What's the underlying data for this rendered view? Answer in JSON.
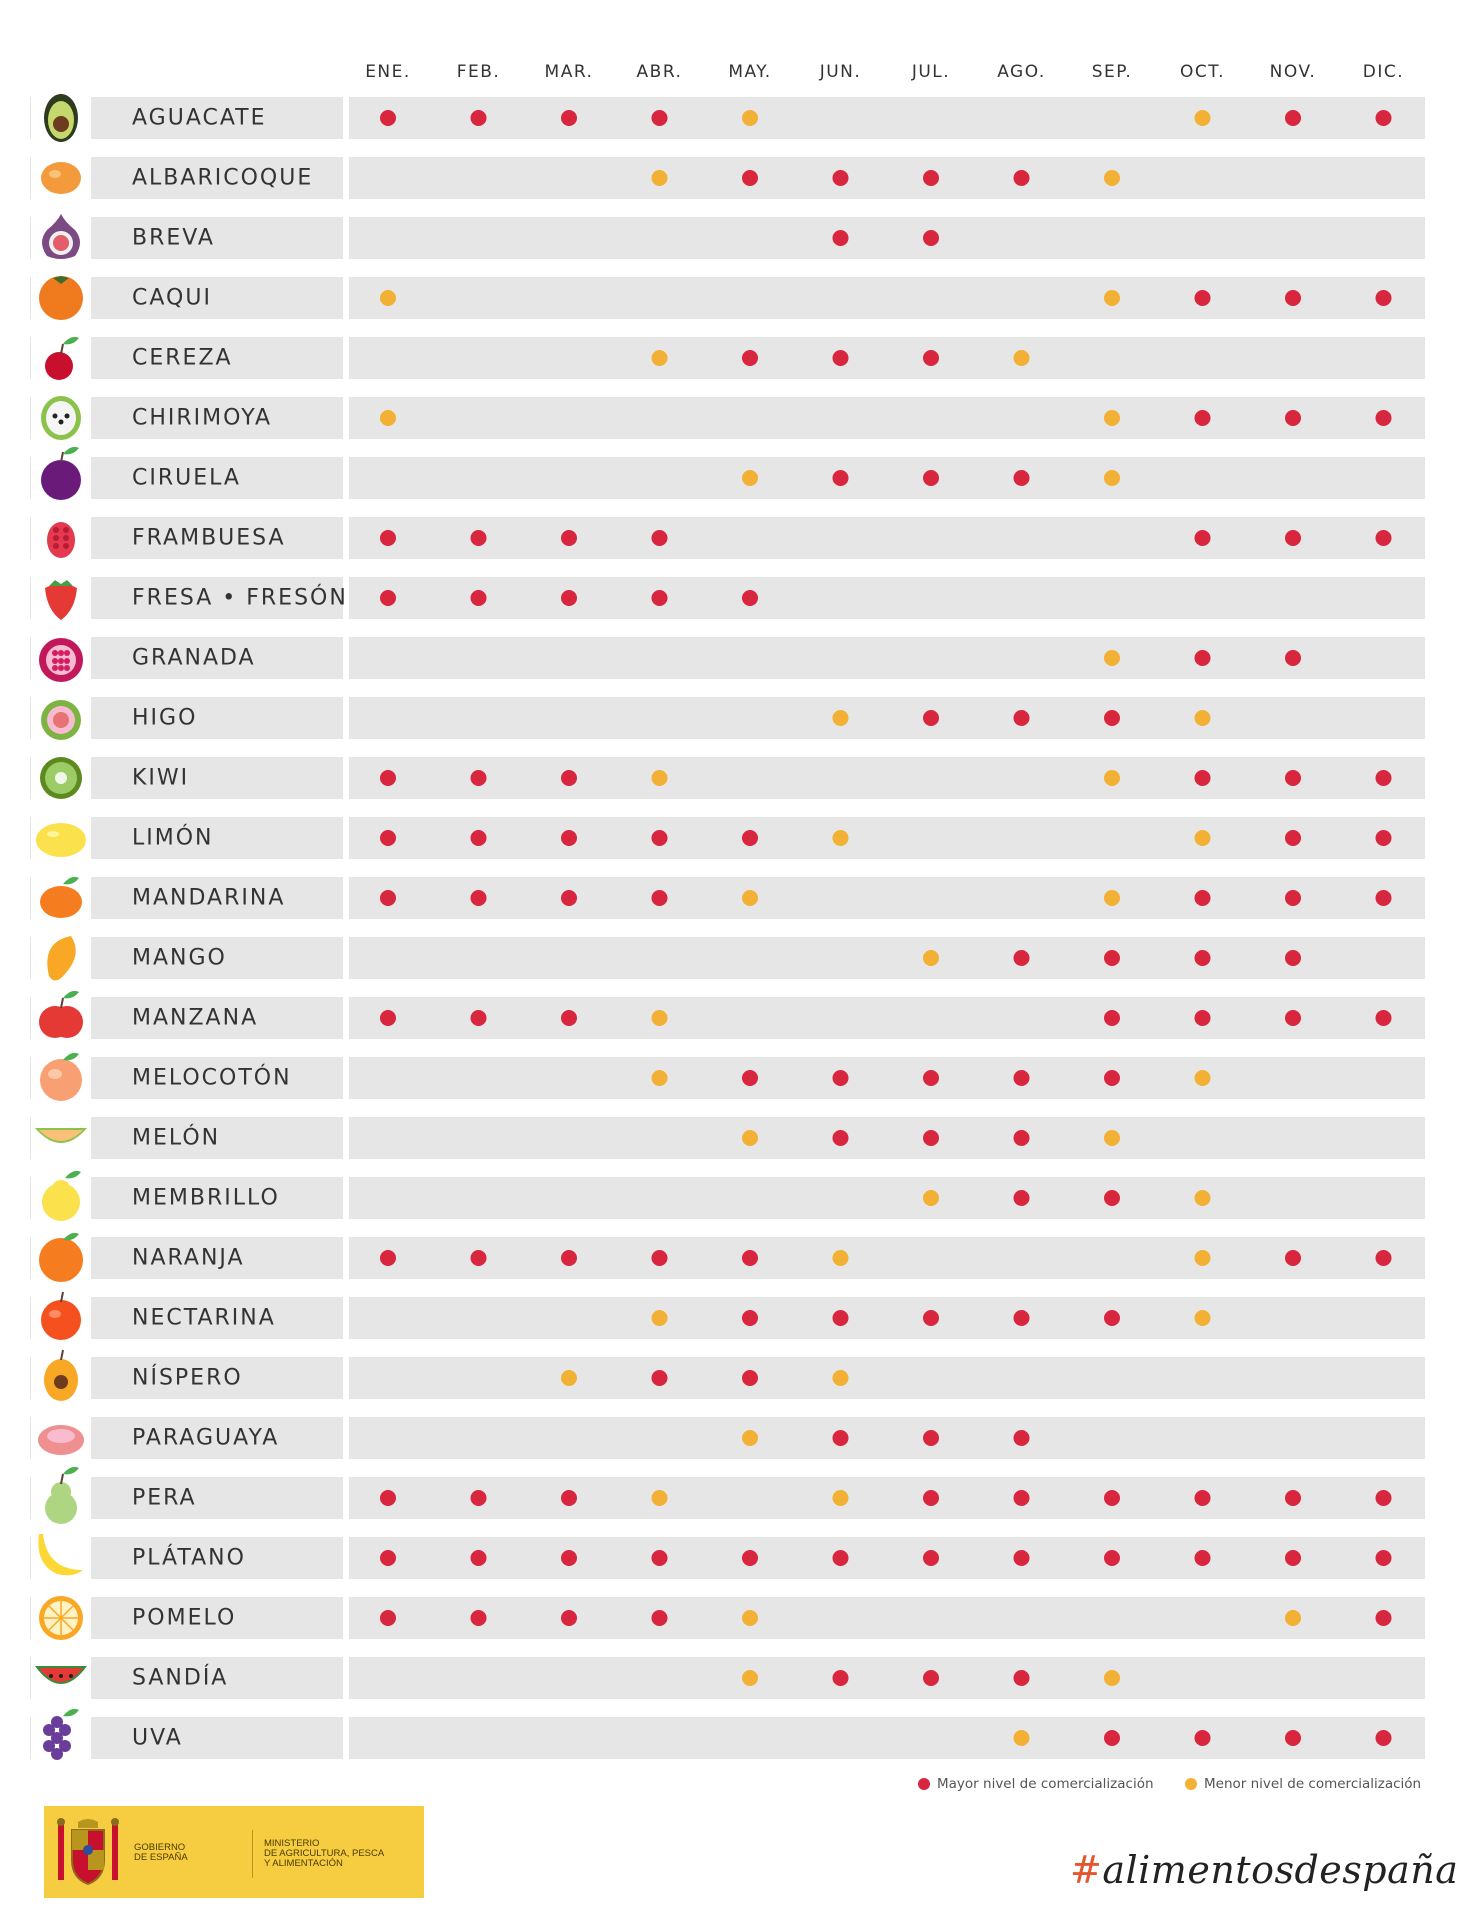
{
  "chart_data": {
    "type": "table",
    "months": [
      "ENE.",
      "FEB.",
      "MAR.",
      "ABR.",
      "MAY.",
      "JUN.",
      "JUL.",
      "AGO.",
      "SEP.",
      "OCT.",
      "NOV.",
      "DIC."
    ],
    "legend": [
      {
        "key": "M",
        "label": "Mayor nivel de comercialización",
        "color": "#d7263d"
      },
      {
        "key": "m",
        "label": "Menor nivel de comercialización",
        "color": "#f2b134"
      }
    ],
    "rows": [
      {
        "fruit": "AGUACATE",
        "icon": "avocado-icon",
        "levels": [
          "M",
          "M",
          "M",
          "M",
          "m",
          "",
          "",
          "",
          "",
          "m",
          "M",
          "M"
        ]
      },
      {
        "fruit": "ALBARICOQUE",
        "icon": "apricot-icon",
        "levels": [
          "",
          "",
          "",
          "m",
          "M",
          "M",
          "M",
          "M",
          "m",
          "",
          "",
          ""
        ]
      },
      {
        "fruit": "BREVA",
        "icon": "early-fig-icon",
        "levels": [
          "",
          "",
          "",
          "",
          "",
          "M",
          "M",
          "",
          "",
          "",
          "",
          ""
        ]
      },
      {
        "fruit": "CAQUI",
        "icon": "persimmon-icon",
        "levels": [
          "m",
          "",
          "",
          "",
          "",
          "",
          "",
          "",
          "m",
          "M",
          "M",
          "M"
        ]
      },
      {
        "fruit": "CEREZA",
        "icon": "cherry-icon",
        "levels": [
          "",
          "",
          "",
          "m",
          "M",
          "M",
          "M",
          "m",
          "",
          "",
          "",
          ""
        ]
      },
      {
        "fruit": "CHIRIMOYA",
        "icon": "cherimoya-icon",
        "levels": [
          "m",
          "",
          "",
          "",
          "",
          "",
          "",
          "",
          "m",
          "M",
          "M",
          "M"
        ]
      },
      {
        "fruit": "CIRUELA",
        "icon": "plum-icon",
        "levels": [
          "",
          "",
          "",
          "",
          "m",
          "M",
          "M",
          "M",
          "m",
          "",
          "",
          ""
        ]
      },
      {
        "fruit": "FRAMBUESA",
        "icon": "raspberry-icon",
        "levels": [
          "M",
          "M",
          "M",
          "M",
          "",
          "",
          "",
          "",
          "",
          "M",
          "M",
          "M"
        ]
      },
      {
        "fruit": "FRESA • FRESÓN",
        "icon": "strawberry-icon",
        "levels": [
          "M",
          "M",
          "M",
          "M",
          "M",
          "",
          "",
          "",
          "",
          "",
          "",
          ""
        ]
      },
      {
        "fruit": "GRANADA",
        "icon": "pomegranate-icon",
        "levels": [
          "",
          "",
          "",
          "",
          "",
          "",
          "",
          "",
          "m",
          "M",
          "M",
          ""
        ]
      },
      {
        "fruit": "HIGO",
        "icon": "fig-icon",
        "levels": [
          "",
          "",
          "",
          "",
          "",
          "m",
          "M",
          "M",
          "M",
          "m",
          "",
          ""
        ]
      },
      {
        "fruit": "KIWI",
        "icon": "kiwi-icon",
        "levels": [
          "M",
          "M",
          "M",
          "m",
          "",
          "",
          "",
          "",
          "m",
          "M",
          "M",
          "M"
        ]
      },
      {
        "fruit": "LIMÓN",
        "icon": "lemon-icon",
        "levels": [
          "M",
          "M",
          "M",
          "M",
          "M",
          "m",
          "",
          "",
          "",
          "m",
          "M",
          "M"
        ]
      },
      {
        "fruit": "MANDARINA",
        "icon": "mandarin-icon",
        "levels": [
          "M",
          "M",
          "M",
          "M",
          "m",
          "",
          "",
          "",
          "m",
          "M",
          "M",
          "M"
        ]
      },
      {
        "fruit": "MANGO",
        "icon": "mango-icon",
        "levels": [
          "",
          "",
          "",
          "",
          "",
          "",
          "m",
          "M",
          "M",
          "M",
          "M",
          ""
        ]
      },
      {
        "fruit": "MANZANA",
        "icon": "apple-icon",
        "levels": [
          "M",
          "M",
          "M",
          "m",
          "",
          "",
          "",
          "",
          "M",
          "M",
          "M",
          "M"
        ]
      },
      {
        "fruit": "MELOCOTÓN",
        "icon": "peach-icon",
        "levels": [
          "",
          "",
          "",
          "m",
          "M",
          "M",
          "M",
          "M",
          "M",
          "m",
          "",
          ""
        ]
      },
      {
        "fruit": "MELÓN",
        "icon": "melon-icon",
        "levels": [
          "",
          "",
          "",
          "",
          "m",
          "M",
          "M",
          "M",
          "m",
          "",
          "",
          ""
        ]
      },
      {
        "fruit": "MEMBRILLO",
        "icon": "quince-icon",
        "levels": [
          "",
          "",
          "",
          "",
          "",
          "",
          "m",
          "M",
          "M",
          "m",
          "",
          ""
        ]
      },
      {
        "fruit": "NARANJA",
        "icon": "orange-icon",
        "levels": [
          "M",
          "M",
          "M",
          "M",
          "M",
          "m",
          "",
          "",
          "",
          "m",
          "M",
          "M"
        ]
      },
      {
        "fruit": "NECTARINA",
        "icon": "nectarine-icon",
        "levels": [
          "",
          "",
          "",
          "m",
          "M",
          "M",
          "M",
          "M",
          "M",
          "m",
          "",
          ""
        ]
      },
      {
        "fruit": "NÍSPERO",
        "icon": "loquat-icon",
        "levels": [
          "",
          "",
          "m",
          "M",
          "M",
          "m",
          "",
          "",
          "",
          "",
          "",
          ""
        ]
      },
      {
        "fruit": "PARAGUAYA",
        "icon": "flat-peach-icon",
        "levels": [
          "",
          "",
          "",
          "",
          "m",
          "M",
          "M",
          "M",
          "",
          "",
          "",
          ""
        ]
      },
      {
        "fruit": "PERA",
        "icon": "pear-icon",
        "levels": [
          "M",
          "M",
          "M",
          "m",
          "",
          "m",
          "M",
          "M",
          "M",
          "M",
          "M",
          "M"
        ]
      },
      {
        "fruit": "PLÁTANO",
        "icon": "banana-icon",
        "levels": [
          "M",
          "M",
          "M",
          "M",
          "M",
          "M",
          "M",
          "M",
          "M",
          "M",
          "M",
          "M"
        ]
      },
      {
        "fruit": "POMELO",
        "icon": "grapefruit-icon",
        "levels": [
          "M",
          "M",
          "M",
          "M",
          "m",
          "",
          "",
          "",
          "",
          "",
          "m",
          "M"
        ]
      },
      {
        "fruit": "SANDÍA",
        "icon": "watermelon-icon",
        "levels": [
          "",
          "",
          "",
          "",
          "m",
          "M",
          "M",
          "M",
          "m",
          "",
          "",
          ""
        ]
      },
      {
        "fruit": "UVA",
        "icon": "grape-icon",
        "levels": [
          "",
          "",
          "",
          "",
          "",
          "",
          "",
          "m",
          "M",
          "M",
          "M",
          "M"
        ]
      }
    ]
  },
  "colors": {
    "row_background": "#e6e6e6",
    "high": "#d7263d",
    "low": "#f2b134",
    "logo_background": "#f6cc40"
  },
  "footer": {
    "gobierno": "GOBIERNO\nDE ESPAÑA",
    "ministerio": "MINISTERIO\nDE AGRICULTURA, PESCA\nY ALIMENTACIÓN",
    "hashtag": "alimentosdespaña",
    "hashtag_symbol": "#"
  }
}
